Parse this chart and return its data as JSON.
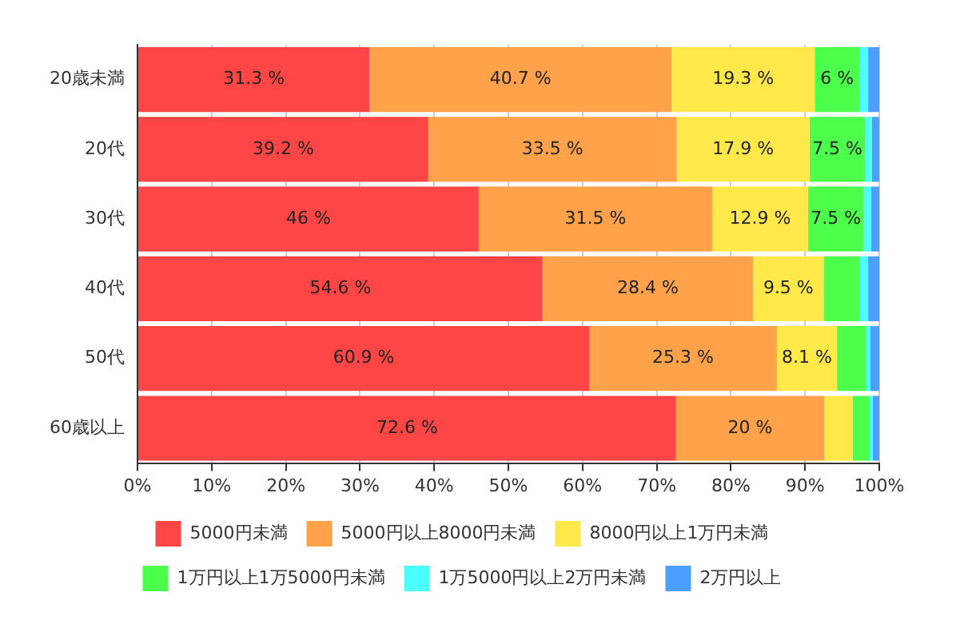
{
  "chart_data": {
    "type": "bar",
    "orientation": "horizontal",
    "stacked": true,
    "categories": [
      "20歳未満",
      "20代",
      "30代",
      "40代",
      "50代",
      "60歳以上"
    ],
    "series": [
      {
        "name": "5000円未満",
        "color": "#ff4646",
        "values": [
          31.3,
          39.2,
          46,
          54.6,
          60.9,
          72.6
        ],
        "value_labels": [
          "31.3 %",
          "39.2 %",
          "46 %",
          "54.6 %",
          "60.9 %",
          "72.6 %"
        ]
      },
      {
        "name": "5000円以上8000円未満",
        "color": "#ffa24a",
        "values": [
          40.7,
          33.5,
          31.5,
          28.4,
          25.3,
          20
        ],
        "value_labels": [
          "40.7 %",
          "33.5 %",
          "31.5 %",
          "28.4 %",
          "25.3 %",
          "20 %"
        ]
      },
      {
        "name": "8000円以上1万円未満",
        "color": "#ffe84a",
        "values": [
          19.3,
          17.9,
          12.9,
          9.5,
          8.1,
          3.8
        ],
        "value_labels": [
          "19.3 %",
          "17.9 %",
          "12.9 %",
          "9.5 %",
          "8.1 %",
          null
        ]
      },
      {
        "name": "1万円以上1万5000円未満",
        "color": "#4cff4a",
        "values": [
          6,
          7.5,
          7.5,
          4.8,
          3.9,
          2.3
        ],
        "value_labels": [
          "6 %",
          "7.5 %",
          "7.5 %",
          null,
          null,
          null
        ]
      },
      {
        "name": "1万5000円以上2万円未満",
        "color": "#4cffff",
        "values": [
          1.2,
          0.9,
          1,
          1.2,
          0.6,
          0.4
        ]
      },
      {
        "name": "2万円以上",
        "color": "#4a9fff",
        "values": [
          1.5,
          1,
          1.1,
          1.5,
          1.2,
          0.9
        ]
      }
    ],
    "xlim": [
      0,
      100
    ],
    "xticks": [
      {
        "value": 0,
        "label": "0%"
      },
      {
        "value": 10,
        "label": "10%"
      },
      {
        "value": 20,
        "label": "20%"
      },
      {
        "value": 30,
        "label": "30%"
      },
      {
        "value": 40,
        "label": "40%"
      },
      {
        "value": 50,
        "label": "50%"
      },
      {
        "value": 60,
        "label": "60%"
      },
      {
        "value": 70,
        "label": "70%"
      },
      {
        "value": 80,
        "label": "80%"
      },
      {
        "value": 90,
        "label": "90%"
      },
      {
        "value": 100,
        "label": "100%"
      }
    ],
    "grid": "x",
    "legend": "bottom"
  }
}
